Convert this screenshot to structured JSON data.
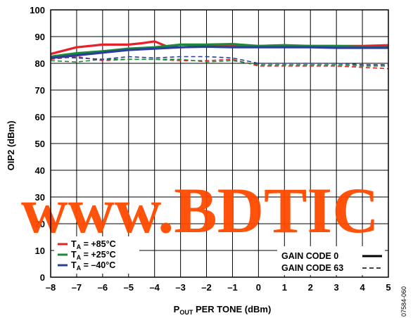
{
  "chart_data": {
    "type": "line",
    "xlabel": "P",
    "xlabel_sub": "OUT",
    "xlabel_rest": " PER TONE (dBm)",
    "ylabel": "OIP2 (dBm)",
    "xlim": [
      -8,
      5
    ],
    "ylim": [
      0,
      100
    ],
    "x_ticks": [
      -8,
      -7,
      -6,
      -5,
      -4,
      -3,
      -2,
      -1,
      0,
      1,
      2,
      3,
      4,
      5
    ],
    "x_tick_labels": [
      "–8",
      "–7",
      "–6",
      "–5",
      "–4",
      "–3",
      "–2",
      "–1",
      "0",
      "1",
      "2",
      "3",
      "4",
      "5"
    ],
    "y_ticks": [
      0,
      10,
      20,
      30,
      40,
      50,
      60,
      70,
      80,
      90,
      100
    ],
    "y_tick_labels": [
      "0",
      "10",
      "20",
      "30",
      "40",
      "50",
      "60",
      "70",
      "80",
      "90",
      "100"
    ],
    "grid": true,
    "legend_temp": [
      {
        "prefix": "T",
        "sub": "A",
        "suffix": " = +85°C",
        "color": "#e8202a"
      },
      {
        "prefix": "T",
        "sub": "A",
        "suffix": " = +25°C",
        "color": "#1a8a3a"
      },
      {
        "prefix": "T",
        "sub": "A",
        "suffix": " = –40°C",
        "color": "#2b3f9a"
      }
    ],
    "legend_style": [
      {
        "label": "GAIN CODE 0",
        "style": "solid"
      },
      {
        "label": "GAIN CODE 63",
        "style": "dashed"
      }
    ],
    "series": [
      {
        "temp": "+85°C",
        "gain_code": 0,
        "style": "solid",
        "color": "#e8202a",
        "x": [
          -8,
          -7,
          -6,
          -5,
          -4.5,
          -4,
          -3.5,
          -3,
          -2,
          -1,
          0,
          1,
          2,
          3,
          4,
          5
        ],
        "y": [
          83.5,
          86,
          87,
          87,
          87.5,
          88.2,
          86.2,
          86,
          86.5,
          86.5,
          86.5,
          86.5,
          86.5,
          86.5,
          86.5,
          86.8
        ]
      },
      {
        "temp": "+25°C",
        "gain_code": 0,
        "style": "solid",
        "color": "#1a8a3a",
        "x": [
          -8,
          -7,
          -6,
          -5,
          -4,
          -3,
          -2,
          -1,
          0,
          1,
          2,
          3,
          4,
          5
        ],
        "y": [
          82.5,
          83.8,
          84.5,
          85.5,
          86,
          87,
          87,
          87.2,
          86.5,
          86.8,
          86.5,
          86.5,
          86.2,
          86
        ],
        "color_dummy": ""
      },
      {
        "temp": "–40°C",
        "gain_code": 0,
        "style": "solid",
        "color": "#2b3f9a",
        "x": [
          -8,
          -7,
          -6,
          -5,
          -4,
          -3,
          -2,
          -1,
          0,
          1,
          2,
          3,
          4,
          5
        ],
        "y": [
          82,
          83,
          84,
          85,
          85.5,
          86,
          86.2,
          86,
          86,
          86,
          86,
          85.8,
          85.8,
          85.8
        ]
      },
      {
        "temp": "+85°C",
        "gain_code": 63,
        "style": "dashed",
        "color": "#e8202a",
        "x": [
          -8,
          -7,
          -6,
          -5,
          -4,
          -3,
          -2,
          -1,
          0,
          1,
          2,
          3,
          4,
          5
        ],
        "y": [
          81.5,
          82.5,
          81,
          81.5,
          81.5,
          81,
          81,
          81.5,
          79,
          79,
          79,
          79,
          78.5,
          78
        ]
      },
      {
        "temp": "+25°C",
        "gain_code": 63,
        "style": "dashed",
        "color": "#1a8a3a",
        "x": [
          -8,
          -7,
          -6,
          -5,
          -4,
          -3,
          -2,
          -1,
          0,
          1,
          2,
          3,
          4,
          5
        ],
        "y": [
          81,
          80.5,
          81.5,
          81.5,
          81.5,
          81.5,
          80.5,
          81,
          79.5,
          79.5,
          79.5,
          79.5,
          79,
          79
        ]
      },
      {
        "temp": "–40°C",
        "gain_code": 63,
        "style": "dashed",
        "color": "#2b3f9a",
        "x": [
          -8,
          -7,
          -6,
          -5,
          -4,
          -3,
          -2,
          -1,
          0,
          1,
          2,
          3,
          4,
          5
        ],
        "y": [
          82.5,
          82,
          81.5,
          82.5,
          82,
          82.5,
          82.5,
          82,
          80,
          80,
          80,
          80,
          79.5,
          79.5
        ]
      }
    ]
  },
  "figure_id": "07584-060",
  "watermark": "www.BDTIC"
}
